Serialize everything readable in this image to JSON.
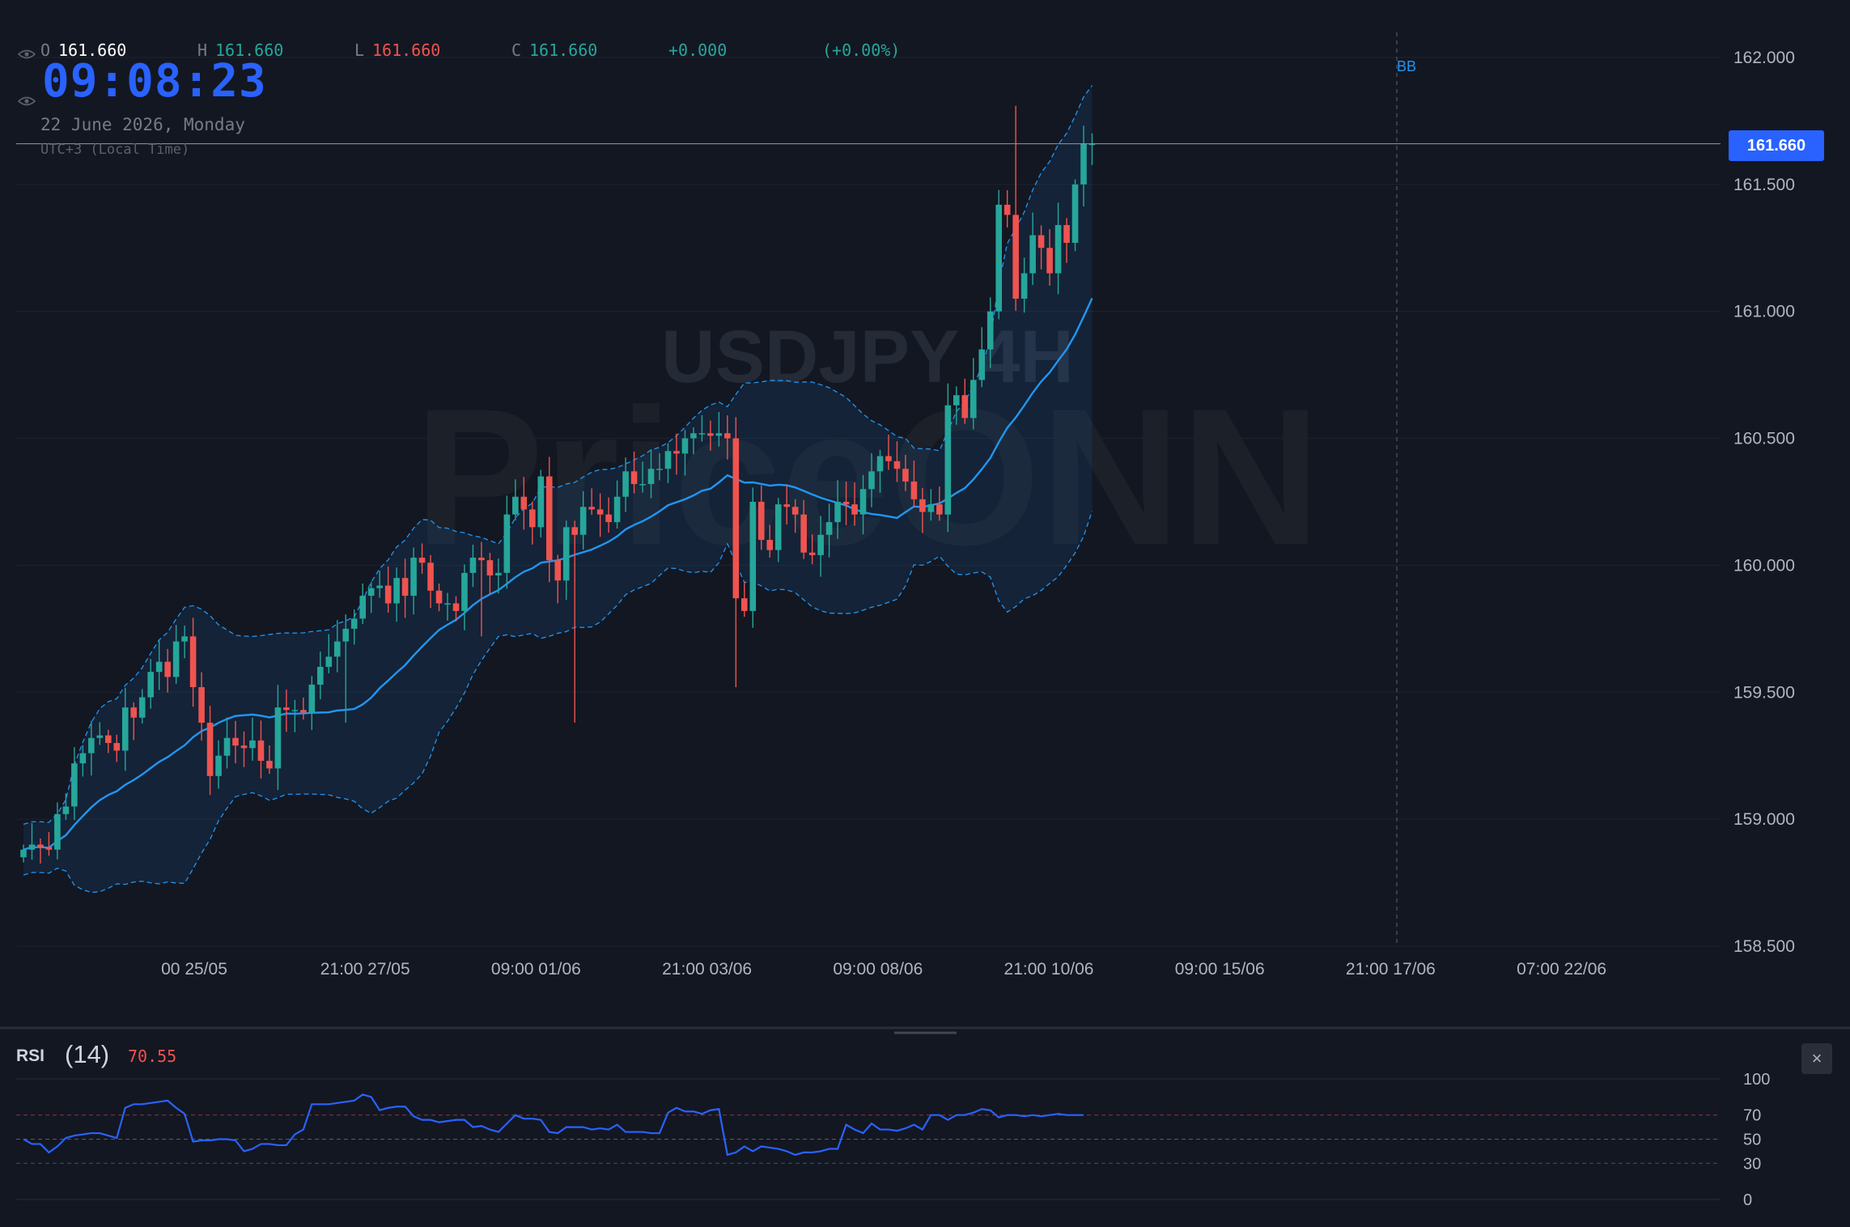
{
  "ohlc": {
    "o_label": "O",
    "o_value": "161.660",
    "h_label": "H",
    "h_value": "161.660",
    "l_label": "L",
    "l_value": "161.660",
    "c_label": "C",
    "c_value": "161.660",
    "change": "+0.000",
    "change_pct": "(+0.00%)"
  },
  "clock": {
    "time": "09:08:23",
    "date": "22 June 2026, Monday",
    "timezone": "UTC+3 (Local Time)"
  },
  "watermark": {
    "symbol": "USDJPY 4H",
    "brand": "PriceONN"
  },
  "last_price_tag": "161.660",
  "indicator_label": "BB",
  "rsi_panel": {
    "name": "RSI",
    "length": "(14)",
    "value": "70.55",
    "close_icon": "close-icon",
    "close_glyph": "×"
  },
  "colors": {
    "background": "#131722",
    "up": "#26a69a",
    "down": "#ef5350",
    "bb": "#2196f3",
    "rsi_line": "#2962ff",
    "accent": "#2962ff"
  },
  "chart_data": [
    {
      "type": "candlestick",
      "title": "USDJPY 4H",
      "indicators": [
        "Bollinger Bands"
      ],
      "x_tick_labels": [
        "00 25/05",
        "21:00 27/05",
        "09:00 01/06",
        "21:00 03/06",
        "09:00 08/06",
        "21:00 10/06",
        "09:00 15/06",
        "21:00 17/06",
        "07:00 22/06"
      ],
      "y_tick_labels": [
        "162.000",
        "161.500",
        "161.000",
        "160.500",
        "160.000",
        "159.500",
        "159.000",
        "158.500"
      ],
      "y_ticks": [
        162.0,
        161.5,
        161.0,
        160.5,
        160.0,
        159.5,
        159.0,
        158.5
      ],
      "ylim": [
        158.5,
        162.0
      ],
      "last_price": 161.66,
      "grid": true,
      "series": [
        {
          "name": "Close",
          "values": [
            158.88,
            158.9,
            158.89,
            158.88,
            159.02,
            159.05,
            159.22,
            159.26,
            159.32,
            159.33,
            159.3,
            159.27,
            159.44,
            159.4,
            159.48,
            159.58,
            159.62,
            159.56,
            159.7,
            159.72,
            159.52,
            159.38,
            159.17,
            159.25,
            159.32,
            159.29,
            159.28,
            159.31,
            159.23,
            159.2,
            159.44,
            159.43,
            159.43,
            159.42,
            159.53,
            159.6,
            159.64,
            159.7,
            159.75,
            159.79,
            159.88,
            159.91,
            159.92,
            159.85,
            159.95,
            159.88,
            160.03,
            160.01,
            159.9,
            159.85,
            159.85,
            159.82,
            159.97,
            160.03,
            160.02,
            159.96,
            159.97,
            160.2,
            160.27,
            160.22,
            160.15,
            160.35,
            160.02,
            159.94,
            160.15,
            160.12,
            160.23,
            160.22,
            160.2,
            160.17,
            160.27,
            160.37,
            160.32,
            160.32,
            160.38,
            160.38,
            160.45,
            160.44,
            160.5,
            160.52,
            160.52,
            160.51,
            160.52,
            160.5,
            159.87,
            159.82,
            160.25,
            160.1,
            160.06,
            160.24,
            160.23,
            160.2,
            160.05,
            160.04,
            160.12,
            160.17,
            160.25,
            160.24,
            160.2,
            160.3,
            160.37,
            160.43,
            160.41,
            160.38,
            160.33,
            160.26,
            160.21,
            160.24,
            160.2,
            160.63,
            160.67,
            160.58,
            160.73,
            160.85,
            161.0,
            161.42,
            161.38,
            161.05,
            161.15,
            161.3,
            161.25,
            161.15,
            161.34,
            161.27,
            161.5,
            161.66,
            161.66
          ]
        }
      ]
    },
    {
      "type": "line",
      "title": "RSI (14)",
      "y_tick_labels": [
        "100",
        "70",
        "50",
        "30",
        "0"
      ],
      "ylim": [
        0,
        100
      ],
      "levels": [
        70,
        50,
        30
      ],
      "series": [
        {
          "name": "RSI",
          "values": [
            50,
            46,
            46,
            39,
            44,
            51,
            53,
            54,
            55,
            55,
            53,
            51,
            76,
            79,
            79,
            80,
            81,
            82,
            76,
            71,
            48,
            49,
            49,
            50,
            50,
            49,
            40,
            42,
            46,
            46,
            45,
            45,
            54,
            58,
            79,
            79,
            79,
            80,
            81,
            82,
            87,
            85,
            74,
            76,
            77,
            77,
            69,
            66,
            66,
            64,
            65,
            66,
            66,
            60,
            61,
            58,
            56,
            63,
            70,
            67,
            67,
            66,
            56,
            55,
            60,
            60,
            60,
            58,
            59,
            58,
            62,
            56,
            56,
            56,
            55,
            55,
            72,
            76,
            73,
            73,
            71,
            74,
            75,
            37,
            39,
            44,
            40,
            44,
            43,
            42,
            40,
            37,
            39,
            39,
            40,
            42,
            42,
            62,
            58,
            55,
            63,
            58,
            58,
            57,
            59,
            62,
            58,
            70,
            70,
            66,
            70,
            70,
            72,
            75,
            74,
            68,
            70,
            70,
            69,
            70,
            69,
            70,
            71,
            70,
            70,
            70
          ]
        }
      ]
    }
  ]
}
